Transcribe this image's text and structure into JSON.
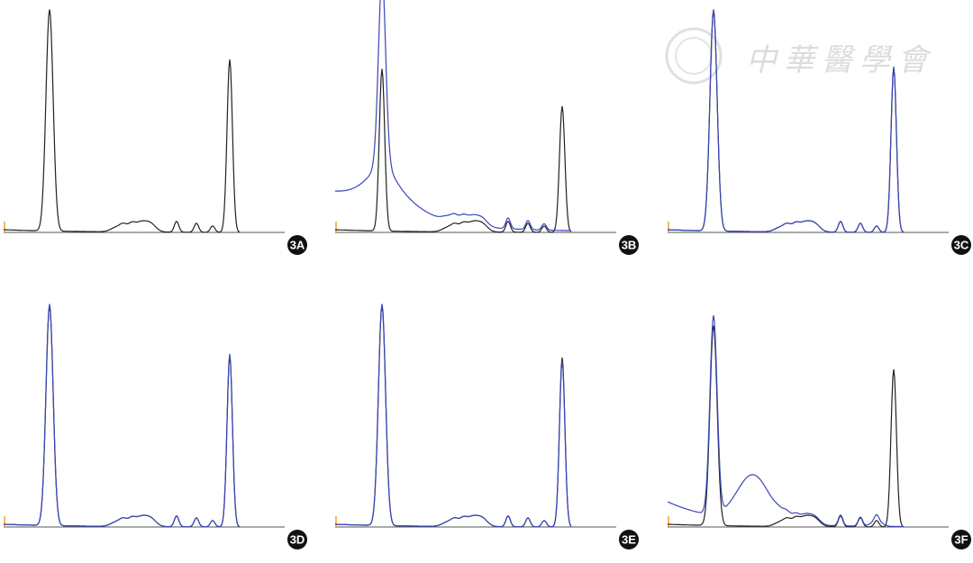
{
  "panels": [
    {
      "label": "3A"
    },
    {
      "label": "3B"
    },
    {
      "label": "3C"
    },
    {
      "label": "3D"
    },
    {
      "label": "3E"
    },
    {
      "label": "3F"
    }
  ],
  "watermark": {
    "text": "中華醫學會"
  }
}
